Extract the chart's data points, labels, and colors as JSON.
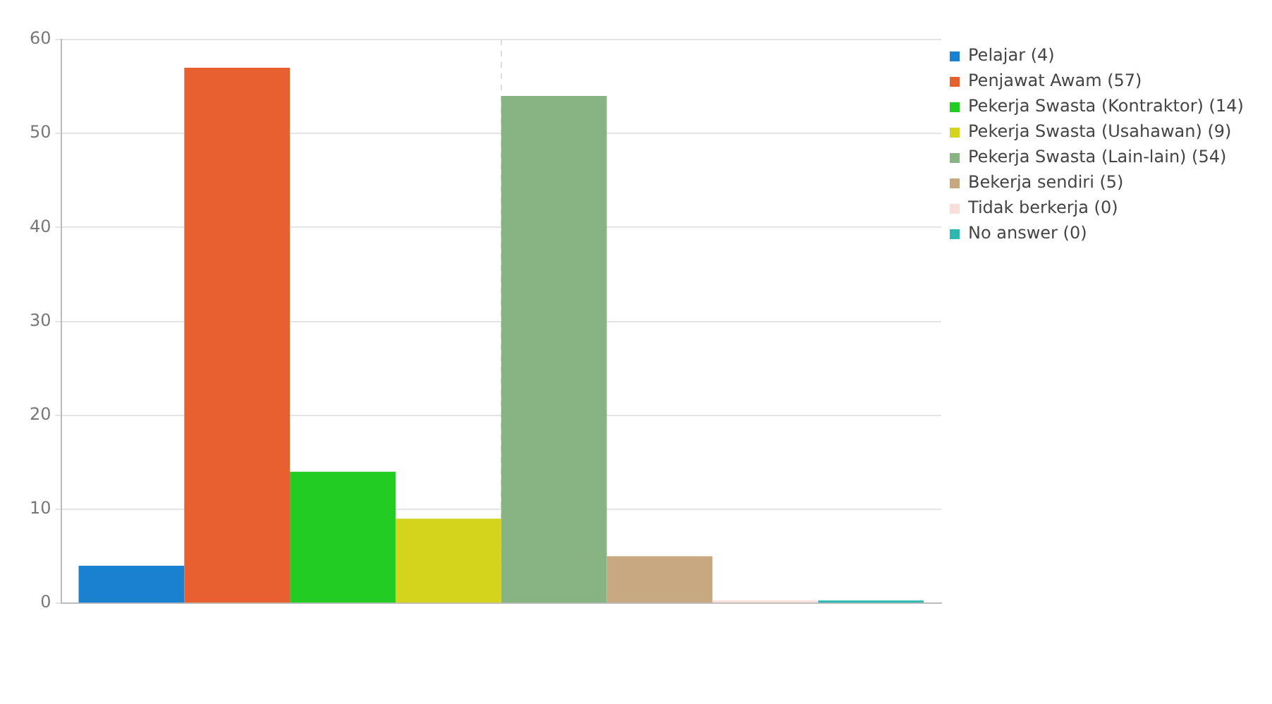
{
  "chart_data": {
    "type": "bar",
    "categories": [
      null
    ],
    "series": [
      {
        "name": "Pelajar (4)",
        "color": "#1a80d0",
        "values": [
          4
        ]
      },
      {
        "name": "Penjawat Awam (57)",
        "color": "#e86030",
        "values": [
          57
        ]
      },
      {
        "name": "Pekerja Swasta (Kontraktor) (14)",
        "color": "#22cc22",
        "values": [
          14
        ]
      },
      {
        "name": "Pekerja Swasta (Usahawan) (9)",
        "color": "#d4d41c",
        "values": [
          9
        ]
      },
      {
        "name": "Pekerja Swasta (Lain-lain) (54)",
        "color": "#88b484",
        "values": [
          54
        ]
      },
      {
        "name": "Bekerja sendiri (5)",
        "color": "#c8a880",
        "values": [
          5
        ]
      },
      {
        "name": "Tidak berkerja (0)",
        "color": "#f8e0d8",
        "values": [
          0
        ]
      },
      {
        "name": "No answer (0)",
        "color": "#2ab8b0",
        "values": [
          0
        ]
      }
    ],
    "ylim": [
      0,
      60
    ],
    "yticks": [
      0,
      10,
      20,
      30,
      40,
      50,
      60
    ],
    "grid": true,
    "legend": "top right"
  }
}
